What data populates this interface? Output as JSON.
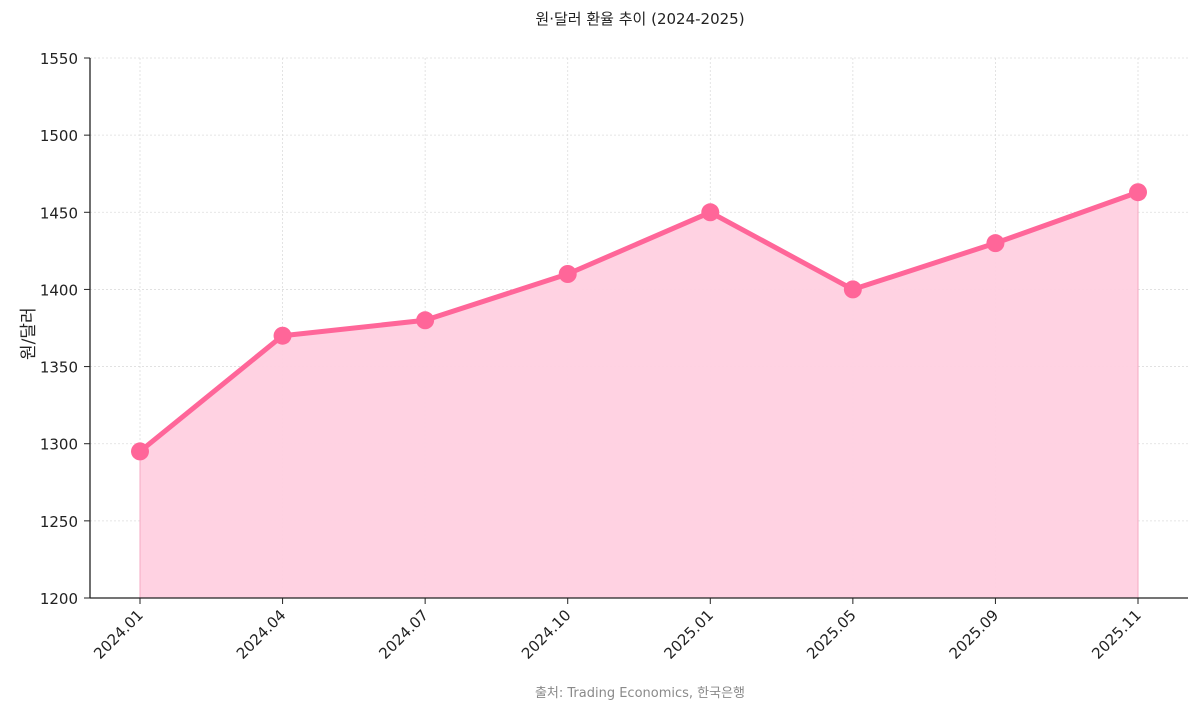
{
  "chart_data": {
    "type": "area",
    "title": "원·달러 환율 추이 (2024-2025)",
    "ylabel": "원/달러",
    "xlabel": "",
    "source": "출처: Trading Economics, 한국은행",
    "categories": [
      "2024.01",
      "2024.04",
      "2024.07",
      "2024.10",
      "2025.01",
      "2025.05",
      "2025.09",
      "2025.11"
    ],
    "values": [
      1295,
      1370,
      1380,
      1410,
      1450,
      1400,
      1430,
      1463
    ],
    "ylim": [
      1200,
      1550
    ],
    "yticks": [
      1200,
      1250,
      1300,
      1350,
      1400,
      1450,
      1500,
      1550
    ],
    "grid": true,
    "line_color": "#ff6699",
    "fill_color": "#ffd0e0"
  }
}
